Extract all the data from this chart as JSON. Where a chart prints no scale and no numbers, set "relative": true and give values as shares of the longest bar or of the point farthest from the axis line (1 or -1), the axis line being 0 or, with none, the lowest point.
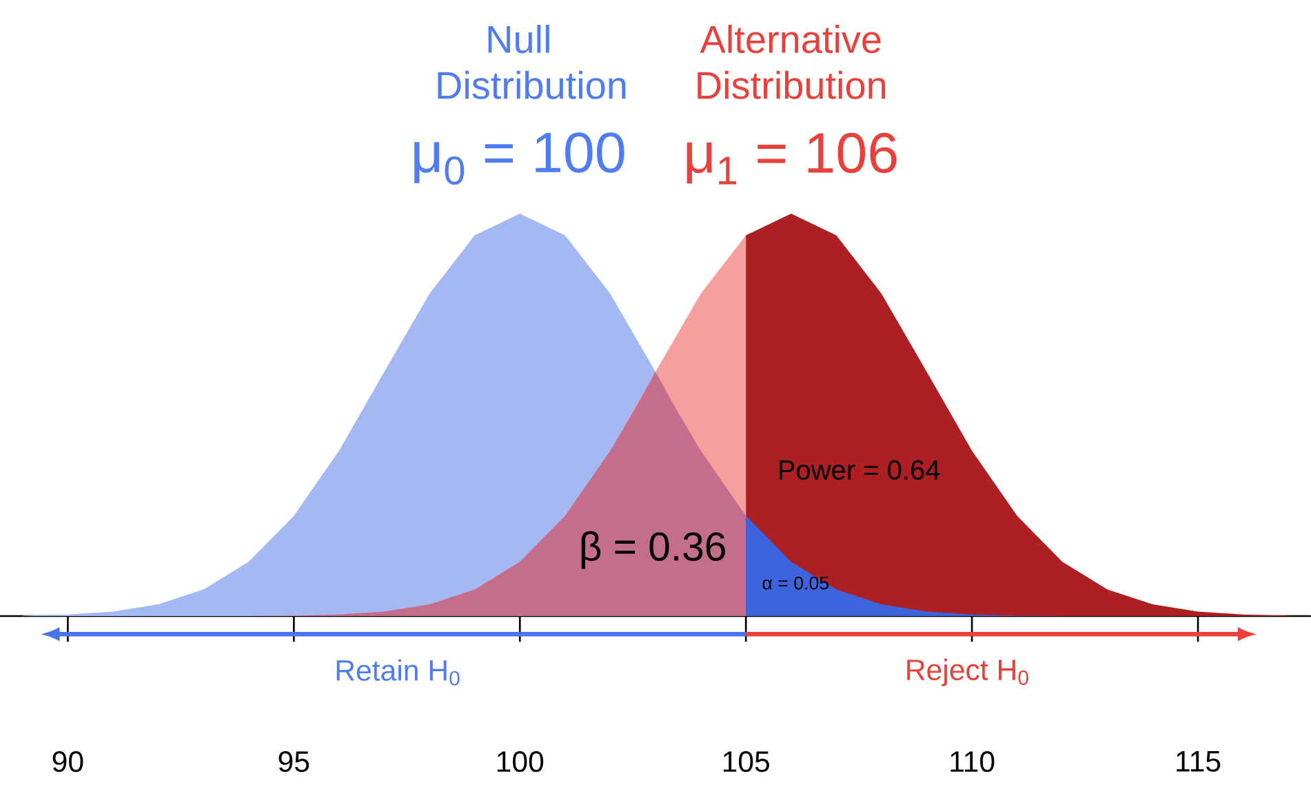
{
  "chart_data": {
    "type": "area",
    "relative": true,
    "xlim": [
      88.5,
      117.5
    ],
    "xticks": [
      90,
      95,
      100,
      105,
      110,
      115
    ],
    "annotations": [
      "Null Distribution",
      "Alternative Distribution",
      "μ$_{0}$ = 100",
      "μ$_{1}$ = 106",
      "Power = 0.64",
      "β = 0.36",
      "α = 0.05",
      "Retain H$_{0}$",
      "Reject H$_{0}$"
    ],
    "series": [
      {
        "color": "#a4b9f4",
        "x": [
          89,
          90,
          91,
          92,
          93,
          94,
          95,
          96,
          97,
          98,
          99,
          100,
          101,
          102,
          103
        ],
        "values": [
          0.001,
          0.004,
          0.011,
          0.029,
          0.066,
          0.135,
          0.249,
          0.411,
          0.607,
          0.801,
          0.946,
          1,
          0.946,
          0.801,
          0.607
        ]
      },
      {
        "color": "#f5a09c",
        "x": [
          89,
          90,
          91,
          92,
          93,
          94,
          95,
          96,
          97,
          98,
          99,
          100,
          101,
          102,
          103,
          104,
          105
        ],
        "values": [
          0,
          0,
          0,
          0,
          0,
          0,
          0.001,
          0.004,
          0.011,
          0.029,
          0.066,
          0.135,
          0.249,
          0.411,
          0.607,
          0.801,
          0.946
        ]
      },
      {
        "color": "#c56d8c",
        "x": [
          89,
          90,
          91,
          92,
          93,
          94,
          95,
          96,
          97,
          98,
          99,
          100,
          101,
          102,
          102.5,
          103,
          103.5,
          104,
          105
        ],
        "values": [
          0,
          0,
          0,
          0,
          0,
          0,
          0.001,
          0.004,
          0.011,
          0.029,
          0.066,
          0.135,
          0.249,
          0.411,
          0.506,
          0.607,
          0.506,
          0.411,
          0.249
        ]
      },
      {
        "color": "#ae1f23",
        "x": [
          105,
          106,
          107,
          108,
          109,
          110,
          111,
          112,
          113,
          114,
          115,
          116,
          117
        ],
        "values": [
          0.946,
          1,
          0.946,
          0.801,
          0.607,
          0.411,
          0.249,
          0.135,
          0.066,
          0.029,
          0.011,
          0.004,
          0.001
        ]
      },
      {
        "color": "#3d64dc",
        "x": [
          105,
          106,
          107,
          108,
          109,
          110,
          111,
          112,
          113,
          114,
          115,
          116,
          117
        ],
        "values": [
          0.249,
          0.135,
          0.066,
          0.029,
          0.011,
          0.004,
          0.001,
          0,
          0,
          0,
          0,
          0,
          0
        ]
      }
    ]
  }
}
